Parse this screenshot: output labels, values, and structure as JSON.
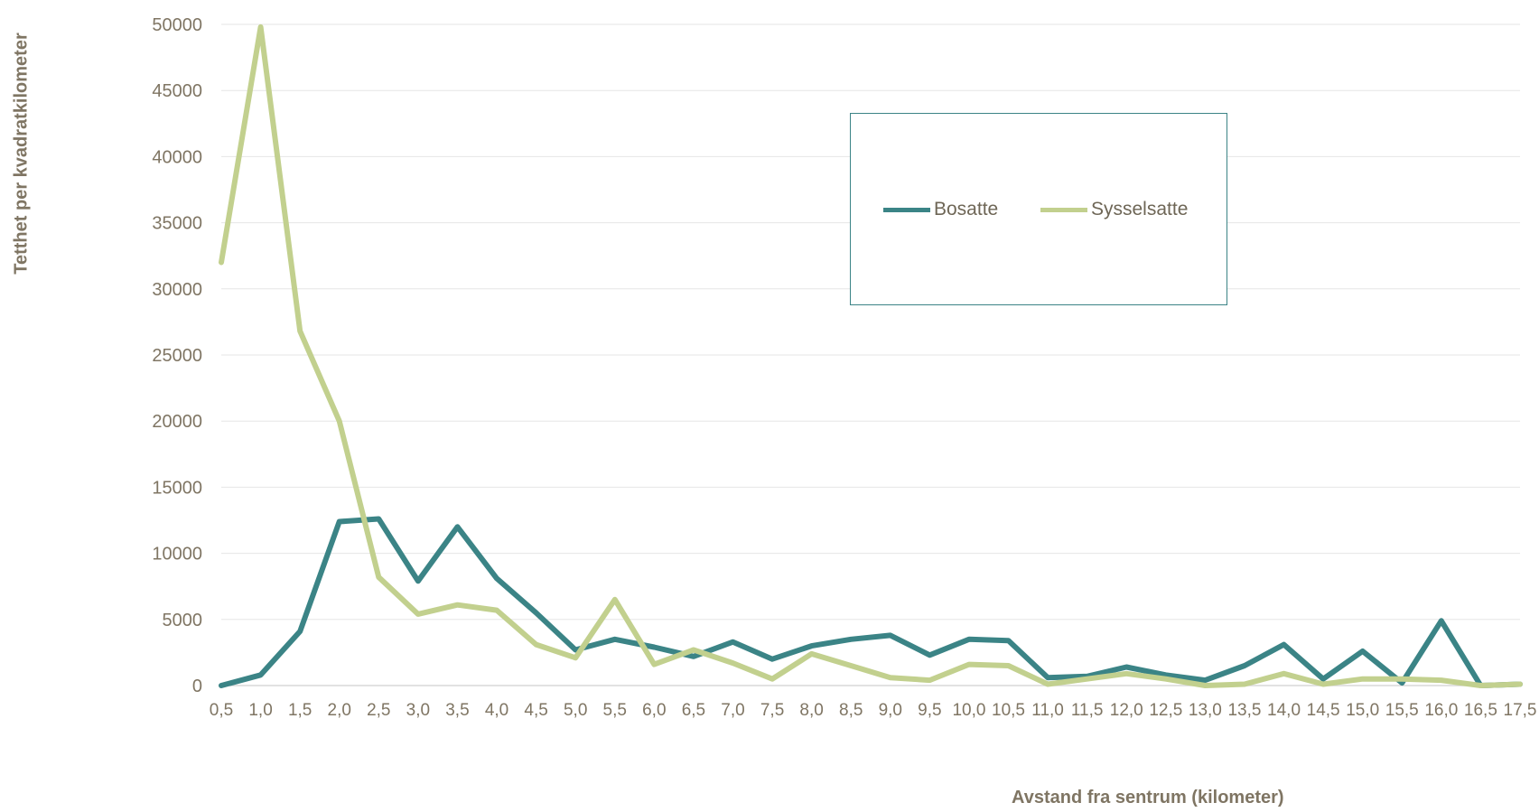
{
  "chart_data": {
    "type": "line",
    "xlabel": "Avstand fra sentrum (kilometer)",
    "ylabel": "Tetthet per kvadratkilometer",
    "ylim": [
      0,
      50000
    ],
    "yticks": [
      "0",
      "5000",
      "10000",
      "15000",
      "20000",
      "25000",
      "30000",
      "35000",
      "40000",
      "45000",
      "50000"
    ],
    "grid": true,
    "legend_position": "top-right",
    "categories": [
      "0,5",
      "1,0",
      "1,5",
      "2,0",
      "2,5",
      "3,0",
      "3,5",
      "4,0",
      "4,5",
      "5,0",
      "5,5",
      "6,0",
      "6,5",
      "7,0",
      "7,5",
      "8,0",
      "8,5",
      "9,0",
      "9,5",
      "10,0",
      "10,5",
      "11,0",
      "11,5",
      "12,0",
      "12,5",
      "13,0",
      "13,5",
      "14,0",
      "14,5",
      "15,0",
      "15,5",
      "16,0",
      "16,5",
      "17,5"
    ],
    "series": [
      {
        "name": "Bosatte",
        "color": "#3b8486",
        "values": [
          0,
          800,
          4100,
          12400,
          12600,
          7900,
          12000,
          8100,
          5500,
          2700,
          3500,
          2900,
          2200,
          3300,
          2000,
          3000,
          3500,
          3800,
          2300,
          3500,
          3400,
          600,
          700,
          1400,
          800,
          400,
          1500,
          3100,
          500,
          2600,
          200,
          4900,
          0,
          100
        ]
      },
      {
        "name": "Sysselsatte",
        "color": "#c2d08e",
        "values": [
          32000,
          49800,
          26800,
          20000,
          8200,
          5400,
          6100,
          5700,
          3100,
          2100,
          6500,
          1600,
          2700,
          1700,
          500,
          2400,
          1500,
          600,
          400,
          1600,
          1500,
          100,
          500,
          900,
          500,
          0,
          100,
          900,
          100,
          500,
          500,
          400,
          0,
          100
        ]
      }
    ]
  }
}
